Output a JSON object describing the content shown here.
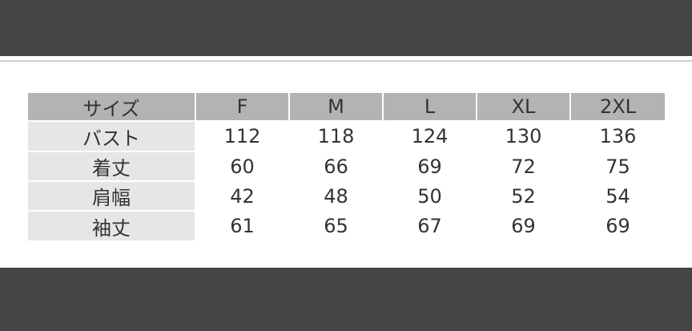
{
  "table": {
    "header": [
      "サイズ",
      "F",
      "M",
      "L",
      "XL",
      "2XL"
    ],
    "rows": [
      [
        "バスト",
        112,
        118,
        124,
        130,
        136
      ],
      [
        "着丈",
        60,
        66,
        69,
        72,
        75
      ],
      [
        "肩幅",
        42,
        48,
        50,
        52,
        54
      ],
      [
        "袖丈",
        61,
        65,
        67,
        69,
        69
      ]
    ]
  }
}
